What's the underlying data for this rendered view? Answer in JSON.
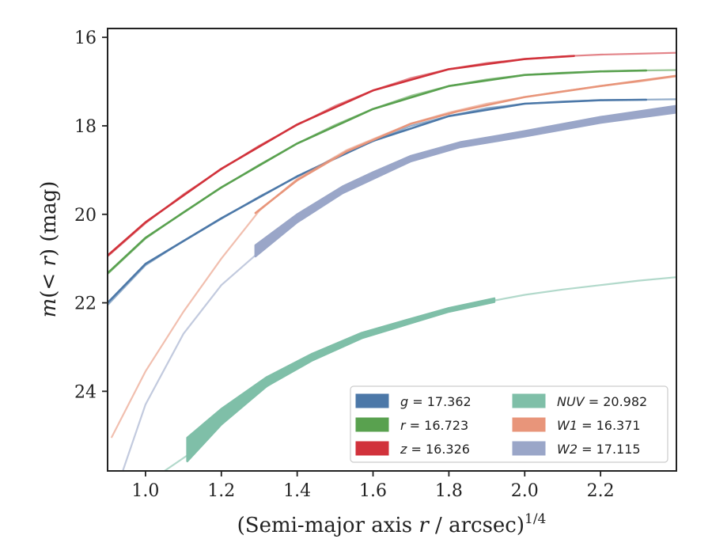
{
  "chart_data": {
    "type": "line",
    "title": "",
    "xlabel": "(Semi-major axis r / arcsec)^{1/4}",
    "xlabel_parts": {
      "pre": "(Semi-major axis ",
      "var": "r",
      "mid": " / arcsec)",
      "sup": "1/4"
    },
    "ylabel": "m(< r) (mag)",
    "ylabel_parts": {
      "var": "m",
      "open": "(",
      "op": "< ",
      "var2": "r",
      "close": ") (mag)"
    },
    "xlim": [
      0.9,
      2.4
    ],
    "ylim": [
      25.8,
      15.8
    ],
    "y_inverted": true,
    "xticks": [
      1.0,
      1.2,
      1.4,
      1.6,
      1.8,
      2.0,
      2.2
    ],
    "xtick_labels": [
      "1.0",
      "1.2",
      "1.4",
      "1.6",
      "1.8",
      "2.0",
      "2.2"
    ],
    "yticks": [
      16,
      18,
      20,
      22,
      24
    ],
    "ytick_labels": [
      "16",
      "18",
      "20",
      "22",
      "24"
    ],
    "grid": false,
    "legend_position": "lower-right",
    "series": [
      {
        "name": "g = 17.362",
        "name_var": "g",
        "name_val": "= 17.362",
        "color": "#4c78a8",
        "model": [
          [
            0.9,
            22.05
          ],
          [
            1.0,
            21.15
          ],
          [
            1.1,
            20.6
          ],
          [
            1.2,
            20.1
          ],
          [
            1.3,
            19.6
          ],
          [
            1.4,
            19.15
          ],
          [
            1.5,
            18.72
          ],
          [
            1.6,
            18.35
          ],
          [
            1.7,
            18.0
          ],
          [
            1.8,
            17.78
          ],
          [
            1.9,
            17.6
          ],
          [
            2.0,
            17.5
          ],
          [
            2.1,
            17.45
          ],
          [
            2.2,
            17.42
          ],
          [
            2.3,
            17.41
          ],
          [
            2.4,
            17.4
          ]
        ],
        "band": [
          [
            0.9,
            22.0,
            22.0
          ],
          [
            1.0,
            21.12,
            21.12
          ],
          [
            1.2,
            20.09,
            20.09
          ],
          [
            1.4,
            19.14,
            19.14
          ],
          [
            1.6,
            18.34,
            18.34
          ],
          [
            1.8,
            17.78,
            17.78
          ],
          [
            2.0,
            17.5,
            17.5
          ],
          [
            2.2,
            17.42,
            17.42
          ],
          [
            2.32,
            17.41,
            17.41
          ]
        ]
      },
      {
        "name": "r = 16.723",
        "name_var": "r",
        "name_val": "= 16.723",
        "color": "#59a14f",
        "model": [
          [
            0.9,
            21.35
          ],
          [
            1.0,
            20.55
          ],
          [
            1.1,
            19.95
          ],
          [
            1.2,
            19.4
          ],
          [
            1.3,
            18.88
          ],
          [
            1.4,
            18.4
          ],
          [
            1.5,
            17.98
          ],
          [
            1.6,
            17.62
          ],
          [
            1.7,
            17.32
          ],
          [
            1.8,
            17.1
          ],
          [
            1.9,
            16.95
          ],
          [
            2.0,
            16.85
          ],
          [
            2.1,
            16.8
          ],
          [
            2.2,
            16.77
          ],
          [
            2.3,
            16.75
          ],
          [
            2.4,
            16.74
          ]
        ],
        "band": [
          [
            0.9,
            21.33,
            21.33
          ],
          [
            1.0,
            20.53,
            20.53
          ],
          [
            1.2,
            19.39,
            19.39
          ],
          [
            1.4,
            18.4,
            18.4
          ],
          [
            1.6,
            17.62,
            17.62
          ],
          [
            1.8,
            17.1,
            17.1
          ],
          [
            2.0,
            16.85,
            16.85
          ],
          [
            2.2,
            16.77,
            16.77
          ],
          [
            2.32,
            16.75,
            16.75
          ]
        ]
      },
      {
        "name": "z = 16.326",
        "name_var": "z",
        "name_val": "= 16.326",
        "color": "#d1323b",
        "model": [
          [
            0.9,
            20.95
          ],
          [
            1.0,
            20.2
          ],
          [
            1.1,
            19.55
          ],
          [
            1.2,
            18.98
          ],
          [
            1.3,
            18.45
          ],
          [
            1.4,
            17.98
          ],
          [
            1.5,
            17.55
          ],
          [
            1.6,
            17.2
          ],
          [
            1.7,
            16.92
          ],
          [
            1.8,
            16.72
          ],
          [
            1.9,
            16.58
          ],
          [
            2.0,
            16.49
          ],
          [
            2.1,
            16.43
          ],
          [
            2.2,
            16.39
          ],
          [
            2.3,
            16.37
          ],
          [
            2.4,
            16.35
          ]
        ],
        "band": [
          [
            0.9,
            20.93,
            20.93
          ],
          [
            1.0,
            20.18,
            20.18
          ],
          [
            1.2,
            18.97,
            18.97
          ],
          [
            1.4,
            17.97,
            17.97
          ],
          [
            1.6,
            17.2,
            17.2
          ],
          [
            1.8,
            16.72,
            16.72
          ],
          [
            2.0,
            16.49,
            16.49
          ],
          [
            2.13,
            16.42,
            16.42
          ]
        ]
      },
      {
        "name": "NUV = 20.982",
        "name_var": "NUV",
        "name_val": "= 20.982",
        "color": "#7fbfa8",
        "model": [
          [
            1.05,
            25.8
          ],
          [
            1.11,
            25.45
          ],
          [
            1.2,
            24.7
          ],
          [
            1.3,
            24.0
          ],
          [
            1.4,
            23.45
          ],
          [
            1.5,
            23.0
          ],
          [
            1.6,
            22.65
          ],
          [
            1.7,
            22.38
          ],
          [
            1.8,
            22.15
          ],
          [
            1.9,
            21.98
          ],
          [
            2.0,
            21.82
          ],
          [
            2.1,
            21.7
          ],
          [
            2.2,
            21.6
          ],
          [
            2.3,
            21.5
          ],
          [
            2.4,
            21.42
          ]
        ],
        "band": [
          [
            1.11,
            25.05,
            25.58
          ],
          [
            1.2,
            24.4,
            24.75
          ],
          [
            1.32,
            23.68,
            23.88
          ],
          [
            1.44,
            23.15,
            23.3
          ],
          [
            1.57,
            22.68,
            22.8
          ],
          [
            1.7,
            22.36,
            22.46
          ],
          [
            1.8,
            22.12,
            22.2
          ],
          [
            1.92,
            21.9,
            21.98
          ]
        ]
      },
      {
        "name": "W1 = 16.371",
        "name_var": "W1",
        "name_val": "= 16.371",
        "color": "#e8957a",
        "model": [
          [
            0.91,
            25.05
          ],
          [
            1.0,
            23.55
          ],
          [
            1.1,
            22.2
          ],
          [
            1.2,
            21.0
          ],
          [
            1.3,
            19.92
          ],
          [
            1.4,
            19.2
          ],
          [
            1.53,
            18.55
          ],
          [
            1.6,
            18.3
          ],
          [
            1.7,
            17.95
          ],
          [
            1.8,
            17.7
          ],
          [
            1.9,
            17.5
          ],
          [
            2.0,
            17.35
          ],
          [
            2.1,
            17.22
          ],
          [
            2.2,
            17.1
          ],
          [
            2.3,
            17.0
          ],
          [
            2.4,
            16.88
          ]
        ],
        "band": [
          [
            1.29,
            19.97,
            19.97
          ],
          [
            1.4,
            19.23,
            19.23
          ],
          [
            1.53,
            18.58,
            18.58
          ],
          [
            1.7,
            17.95,
            17.95
          ],
          [
            1.82,
            17.68,
            17.68
          ],
          [
            2.0,
            17.35,
            17.35
          ],
          [
            2.2,
            17.1,
            17.1
          ],
          [
            2.4,
            16.87,
            16.87
          ]
        ]
      },
      {
        "name": "W2 = 17.115",
        "name_var": "W2",
        "name_val": "= 17.115",
        "color": "#9aa6c8",
        "model": [
          [
            0.94,
            25.8
          ],
          [
            1.0,
            24.3
          ],
          [
            1.1,
            22.7
          ],
          [
            1.2,
            21.6
          ],
          [
            1.3,
            20.85
          ],
          [
            1.4,
            20.1
          ],
          [
            1.5,
            19.5
          ],
          [
            1.6,
            19.1
          ],
          [
            1.7,
            18.72
          ],
          [
            1.8,
            18.45
          ],
          [
            1.9,
            18.3
          ],
          [
            2.0,
            18.15
          ],
          [
            2.1,
            18.0
          ],
          [
            2.2,
            17.85
          ],
          [
            2.3,
            17.72
          ],
          [
            2.4,
            17.6
          ]
        ],
        "band": [
          [
            1.29,
            20.7,
            20.95
          ],
          [
            1.4,
            20.0,
            20.18
          ],
          [
            1.52,
            19.37,
            19.52
          ],
          [
            1.6,
            19.05,
            19.2
          ],
          [
            1.7,
            18.68,
            18.8
          ],
          [
            1.83,
            18.37,
            18.48
          ],
          [
            2.0,
            18.12,
            18.24
          ],
          [
            2.2,
            17.8,
            17.93
          ],
          [
            2.4,
            17.55,
            17.7
          ]
        ]
      }
    ]
  }
}
